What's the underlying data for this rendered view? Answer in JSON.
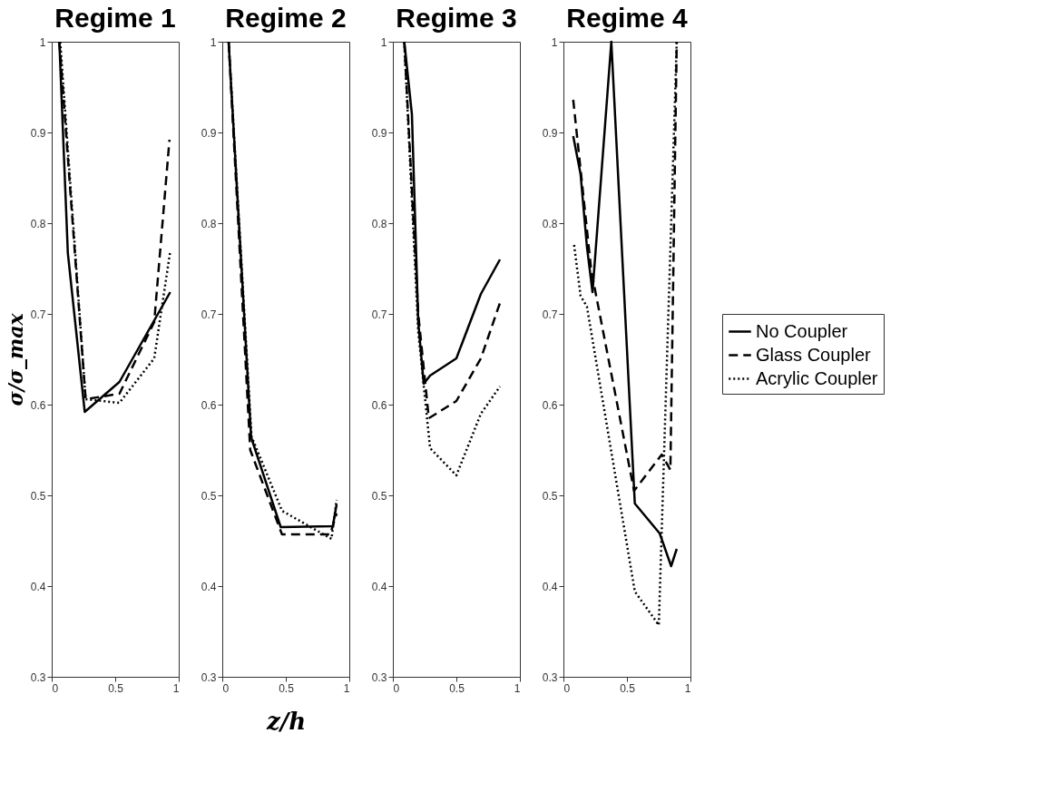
{
  "chart_data": [
    {
      "type": "line",
      "title": "Regime 1",
      "ylabel": "σ/σ_max",
      "xlim": [
        0,
        1
      ],
      "xticks": [
        0,
        0.5,
        1
      ],
      "ylim": [
        0.3,
        1
      ],
      "yticks": [
        0.3,
        0.4,
        0.5,
        0.6,
        0.7,
        0.8,
        0.9,
        1
      ],
      "grid": false,
      "legend": false,
      "series": [
        {
          "color": "#000000",
          "line_style": "solid",
          "x": [
            0.06,
            0.127,
            0.26,
            0.533,
            0.933
          ],
          "values": [
            1.0,
            0.767,
            0.592,
            0.625,
            0.724
          ]
        },
        {
          "color": "#000000",
          "line_style": "dashed",
          "x": [
            0.06,
            0.267,
            0.533,
            0.807,
            0.927
          ],
          "values": [
            1.0,
            0.606,
            0.612,
            0.691,
            0.892
          ]
        },
        {
          "color": "#000000",
          "line_style": "dotted",
          "x": [
            0.067,
            0.267,
            0.533,
            0.807,
            0.933
          ],
          "values": [
            1.0,
            0.606,
            0.602,
            0.651,
            0.769
          ]
        }
      ]
    },
    {
      "type": "line",
      "title": "Regime 2",
      "xlabel": "z/h",
      "xlim": [
        0,
        1
      ],
      "xticks": [
        0,
        0.5,
        1
      ],
      "ylim": [
        0.3,
        1
      ],
      "yticks": [
        0.3,
        0.4,
        0.5,
        0.6,
        0.7,
        0.8,
        0.9,
        1
      ],
      "grid": false,
      "legend": false,
      "series": [
        {
          "color": "#000000",
          "line_style": "solid",
          "x": [
            0.05,
            0.227,
            0.46,
            0.87,
            0.9
          ],
          "values": [
            1.0,
            0.564,
            0.465,
            0.466,
            0.49
          ]
        },
        {
          "color": "#000000",
          "line_style": "dashed",
          "x": [
            0.05,
            0.22,
            0.47,
            0.85,
            0.9
          ],
          "values": [
            1.0,
            0.55,
            0.457,
            0.457,
            0.48
          ]
        },
        {
          "color": "#000000",
          "line_style": "dotted",
          "x": [
            0.05,
            0.23,
            0.47,
            0.86,
            0.9
          ],
          "values": [
            1.0,
            0.565,
            0.483,
            0.452,
            0.495
          ]
        }
      ]
    },
    {
      "type": "line",
      "title": "Regime 3",
      "xlim": [
        0,
        1
      ],
      "xticks": [
        0,
        0.5,
        1
      ],
      "ylim": [
        0.3,
        1
      ],
      "yticks": [
        0.3,
        0.4,
        0.5,
        0.6,
        0.7,
        0.8,
        0.9,
        1
      ],
      "grid": false,
      "legend": false,
      "series": [
        {
          "color": "#000000",
          "line_style": "solid",
          "x": [
            0.09,
            0.15,
            0.2,
            0.243,
            0.293,
            0.5,
            0.693,
            0.843
          ],
          "values": [
            1.0,
            0.92,
            0.691,
            0.623,
            0.632,
            0.651,
            0.722,
            0.76
          ]
        },
        {
          "color": "#000000",
          "line_style": "dashed",
          "x": [
            0.09,
            0.2,
            0.283,
            0.5,
            0.693,
            0.843
          ],
          "values": [
            1.0,
            0.7,
            0.585,
            0.604,
            0.651,
            0.712
          ]
        },
        {
          "color": "#000000",
          "line_style": "dotted",
          "x": [
            0.09,
            0.2,
            0.293,
            0.5,
            0.693,
            0.843
          ],
          "values": [
            1.0,
            0.68,
            0.552,
            0.522,
            0.59,
            0.62
          ]
        }
      ]
    },
    {
      "type": "line",
      "title": "Regime 4",
      "xlim": [
        0,
        1
      ],
      "xticks": [
        0,
        0.5,
        1
      ],
      "ylim": [
        0.3,
        1
      ],
      "yticks": [
        0.3,
        0.4,
        0.5,
        0.6,
        0.7,
        0.8,
        0.9,
        1
      ],
      "grid": false,
      "legend": "right",
      "series": [
        {
          "name": "No Coupler",
          "color": "#000000",
          "line_style": "solid",
          "x": [
            0.077,
            0.135,
            0.185,
            0.229,
            0.377,
            0.562,
            0.758,
            0.848,
            0.892
          ],
          "values": [
            0.896,
            0.854,
            0.774,
            0.724,
            1.0,
            0.491,
            0.458,
            0.422,
            0.441
          ]
        },
        {
          "name": "Glass Coupler",
          "color": "#000000",
          "line_style": "dashed",
          "x": [
            0.077,
            0.219,
            0.556,
            0.774,
            0.842,
            0.892
          ],
          "values": [
            0.936,
            0.748,
            0.505,
            0.545,
            0.528,
            1.0
          ]
        },
        {
          "name": "Acrylic Coupler",
          "color": "#000000",
          "line_style": "dotted",
          "x": [
            0.084,
            0.135,
            0.185,
            0.562,
            0.751,
            0.892
          ],
          "values": [
            0.776,
            0.72,
            0.708,
            0.394,
            0.357,
            1.0
          ]
        }
      ]
    }
  ]
}
